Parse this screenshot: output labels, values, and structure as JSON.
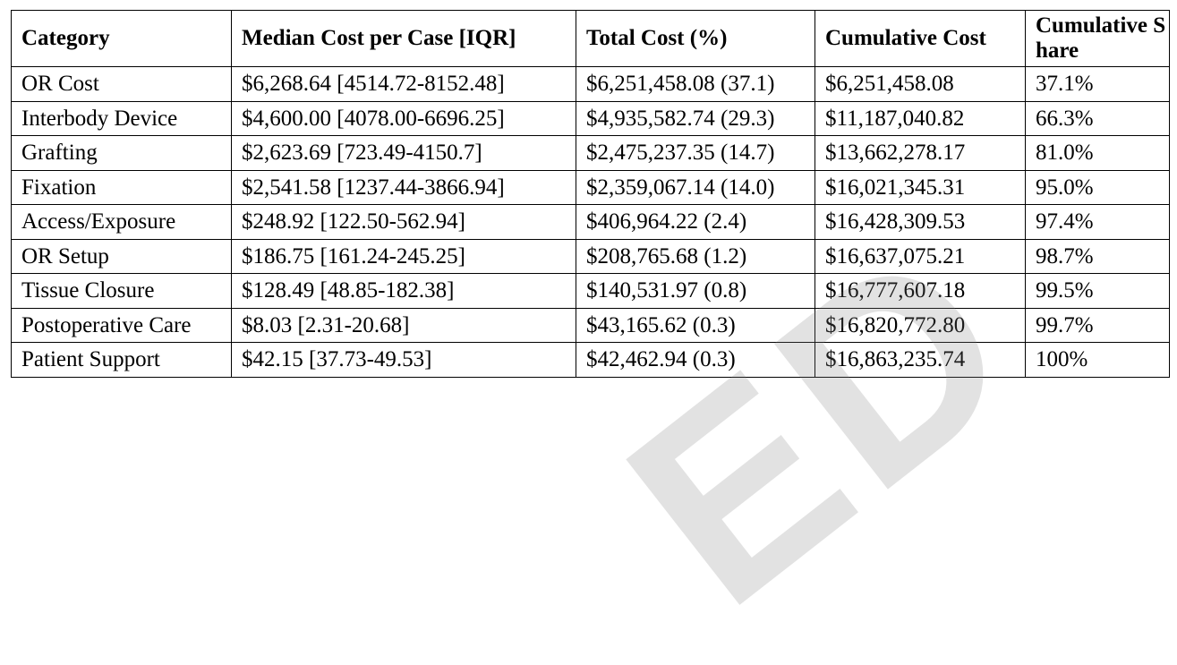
{
  "table": {
    "headers": [
      "Category",
      "Median Cost per Case [IQR]",
      "Total Cost (%)",
      "Cumulative Cost",
      "Cumulative Share"
    ],
    "rows": [
      [
        "OR Cost",
        "$6,268.64 [4514.72-8152.48]",
        "$6,251,458.08 (37.1)",
        "$6,251,458.08",
        "37.1%"
      ],
      [
        "Interbody Device",
        "$4,600.00 [4078.00-6696.25]",
        "$4,935,582.74 (29.3)",
        "$11,187,040.82",
        "66.3%"
      ],
      [
        "Grafting",
        "$2,623.69 [723.49-4150.7]",
        "$2,475,237.35 (14.7)",
        "$13,662,278.17",
        "81.0%"
      ],
      [
        "Fixation",
        "$2,541.58 [1237.44-3866.94]",
        "$2,359,067.14 (14.0)",
        "$16,021,345.31",
        "95.0%"
      ],
      [
        "Access/Exposure",
        "$248.92 [122.50-562.94]",
        "$406,964.22 (2.4)",
        "$16,428,309.53",
        "97.4%"
      ],
      [
        "OR Setup",
        "$186.75 [161.24-245.25]",
        "$208,765.68 (1.2)",
        "$16,637,075.21",
        "98.7%"
      ],
      [
        "Tissue Closure",
        "$128.49 [48.85-182.38]",
        "$140,531.97 (0.8)",
        "$16,777,607.18",
        "99.5%"
      ],
      [
        "Postoperative Care",
        "$8.03 [2.31-20.68]",
        "$43,165.62 (0.3)",
        "$16,820,772.80",
        "99.7%"
      ],
      [
        "Patient Support",
        "$42.15 [37.73-49.53]",
        "$42,462.94 (0.3)",
        "$16,863,235.74",
        "100%"
      ]
    ]
  },
  "watermark": {
    "text": "ED",
    "color": "#808080"
  }
}
